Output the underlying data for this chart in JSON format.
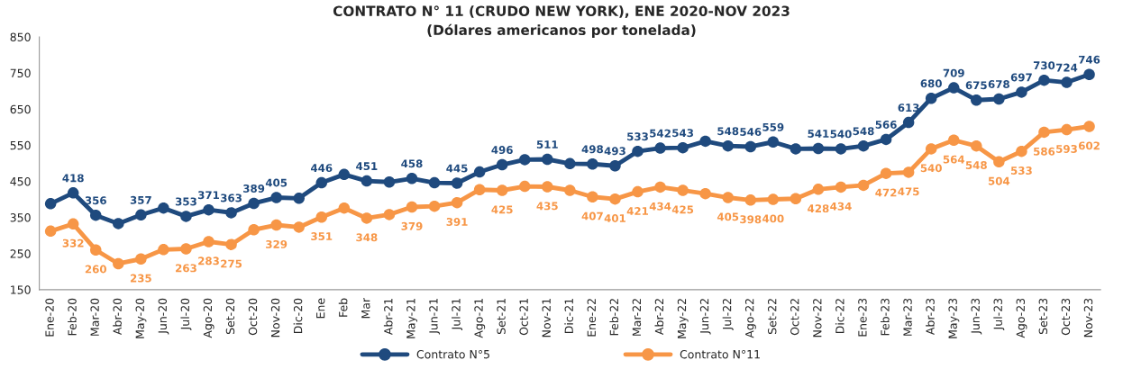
{
  "chart_data": {
    "type": "line",
    "title": "CONTRATO N° 11 (CRUDO NEW YORK), ENE 2020-NOV 2023",
    "subtitle": "(Dólares americanos por tonelada)",
    "categories": [
      "Ene-20",
      "Feb-20",
      "Mar-20",
      "Abr-20",
      "May-20",
      "Jun-20",
      "Jul-20",
      "Ago-20",
      "Set-20",
      "Oct-20",
      "Nov-20",
      "Dic-20",
      "Ene",
      "Feb",
      "Mar",
      "Abr-21",
      "May-21",
      "Jun-21",
      "Jul-21",
      "Ago-21",
      "Set-21",
      "Oct-21",
      "Nov-21",
      "Dic-21",
      "Ene-22",
      "Feb-22",
      "Mar-22",
      "Abr-22",
      "May-22",
      "Jun-22",
      "Jul-22",
      "Ago-22",
      "Set-22",
      "Oct-22",
      "Nov-22",
      "Dic-22",
      "Ene-23",
      "Feb-23",
      "Mar-23",
      "Abr-23",
      "May-23",
      "Jun-23",
      "Jul-23",
      "Ago-23",
      "Set-23",
      "Oct-23",
      "Nov-23"
    ],
    "series": [
      {
        "name": "Contrato N°5",
        "color": "#1f4a7e",
        "values": [
          388,
          418,
          356,
          333,
          357,
          376,
          353,
          371,
          363,
          389,
          405,
          403,
          446,
          469,
          451,
          448,
          458,
          446,
          445,
          476,
          496,
          510,
          511,
          499,
          498,
          493,
          533,
          542,
          543,
          561,
          548,
          546,
          559,
          540,
          541,
          540,
          548,
          566,
          613,
          680,
          709,
          675,
          678,
          697,
          730,
          724,
          746
        ],
        "value_labels": [
          null,
          "418",
          "356",
          null,
          "357",
          null,
          "353",
          "371",
          "363",
          "389",
          "405",
          null,
          "446",
          null,
          "451",
          null,
          "458",
          null,
          "445",
          null,
          "496",
          null,
          "511",
          null,
          "498",
          "493",
          "533",
          "542",
          "543",
          null,
          "548",
          "546",
          "559",
          null,
          "541",
          "540",
          "548",
          "566",
          "613",
          "680",
          "709",
          "675",
          "678",
          "697",
          "730",
          "724",
          "746"
        ]
      },
      {
        "name": "Contrato N°11",
        "color": "#f79646",
        "values": [
          312,
          332,
          260,
          222,
          235,
          261,
          263,
          283,
          275,
          316,
          329,
          323,
          351,
          376,
          348,
          358,
          379,
          381,
          391,
          427,
          425,
          436,
          435,
          425,
          407,
          401,
          421,
          434,
          425,
          416,
          405,
          398,
          400,
          402,
          428,
          434,
          439,
          472,
          475,
          540,
          564,
          548,
          504,
          533,
          586,
          593,
          602
        ],
        "value_labels": [
          null,
          "332",
          "260",
          null,
          "235",
          null,
          "263",
          "283",
          "275",
          null,
          "329",
          null,
          "351",
          null,
          "348",
          null,
          "379",
          null,
          "391",
          null,
          "425",
          null,
          "435",
          null,
          "407",
          "401",
          "421",
          "434",
          "425",
          null,
          "405",
          "398",
          "400",
          null,
          "428",
          "434",
          null,
          "472",
          "475",
          "540",
          "564",
          "548",
          "504",
          "533",
          "586",
          "593",
          "602"
        ]
      }
    ],
    "ylim": [
      150,
      850
    ],
    "yticks": [
      150,
      250,
      350,
      450,
      550,
      650,
      750,
      850
    ],
    "marker": "circle",
    "line_style": "solid",
    "grid": false,
    "legend": "bottom"
  }
}
